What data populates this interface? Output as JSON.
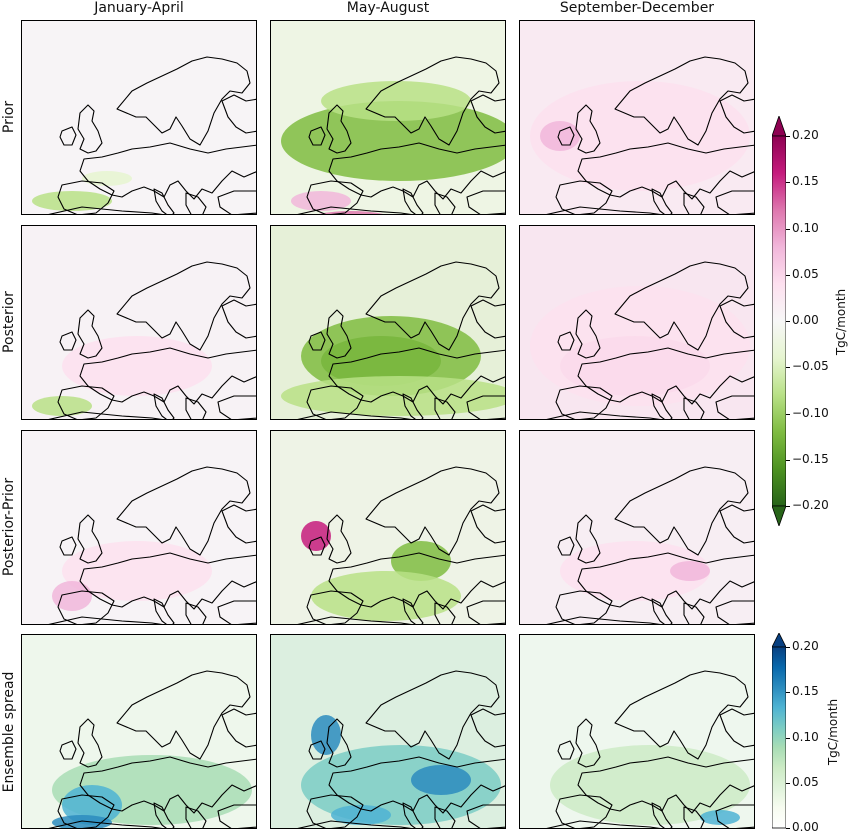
{
  "columns": [
    "January-April",
    "May-August",
    "September-December"
  ],
  "rows": [
    "Prior",
    "Posterior",
    "Posterior-Prior",
    "Ensemble spread"
  ],
  "colorbars": {
    "diverging": {
      "label": "TgC/month",
      "ticks": [
        "0.20",
        "0.15",
        "0.10",
        "0.05",
        "0.00",
        "−0.05",
        "−0.10",
        "−0.15",
        "−0.20"
      ],
      "colors": [
        "#8e0152",
        "#c51b7d",
        "#de77ae",
        "#f1b6da",
        "#fde0ef",
        "#f7f7f7",
        "#e6f5d0",
        "#b8e186",
        "#7fbc41",
        "#4d9221",
        "#276419"
      ]
    },
    "sequential": {
      "label": "TgC/month",
      "ticks": [
        "0.20",
        "0.15",
        "0.10",
        "0.05",
        "0.00"
      ],
      "colors": [
        "#084081",
        "#0868ac",
        "#2b8cbe",
        "#4eb3d3",
        "#7bccc4",
        "#a8ddb5",
        "#ccebc5",
        "#e0f3db",
        "#f7fcf0",
        "#ffffff"
      ]
    }
  },
  "panel_tints": [
    [
      "#f7f4f6",
      "#eef5e4",
      "#f9eaf2"
    ],
    [
      "#f7f2f5",
      "#e6f0d8",
      "#f8e6f0"
    ],
    [
      "#f7f3f6",
      "#eef3e6",
      "#f7eef3"
    ],
    [
      "#eef7ec",
      "#dcefe0",
      "#eef7ee"
    ]
  ]
}
